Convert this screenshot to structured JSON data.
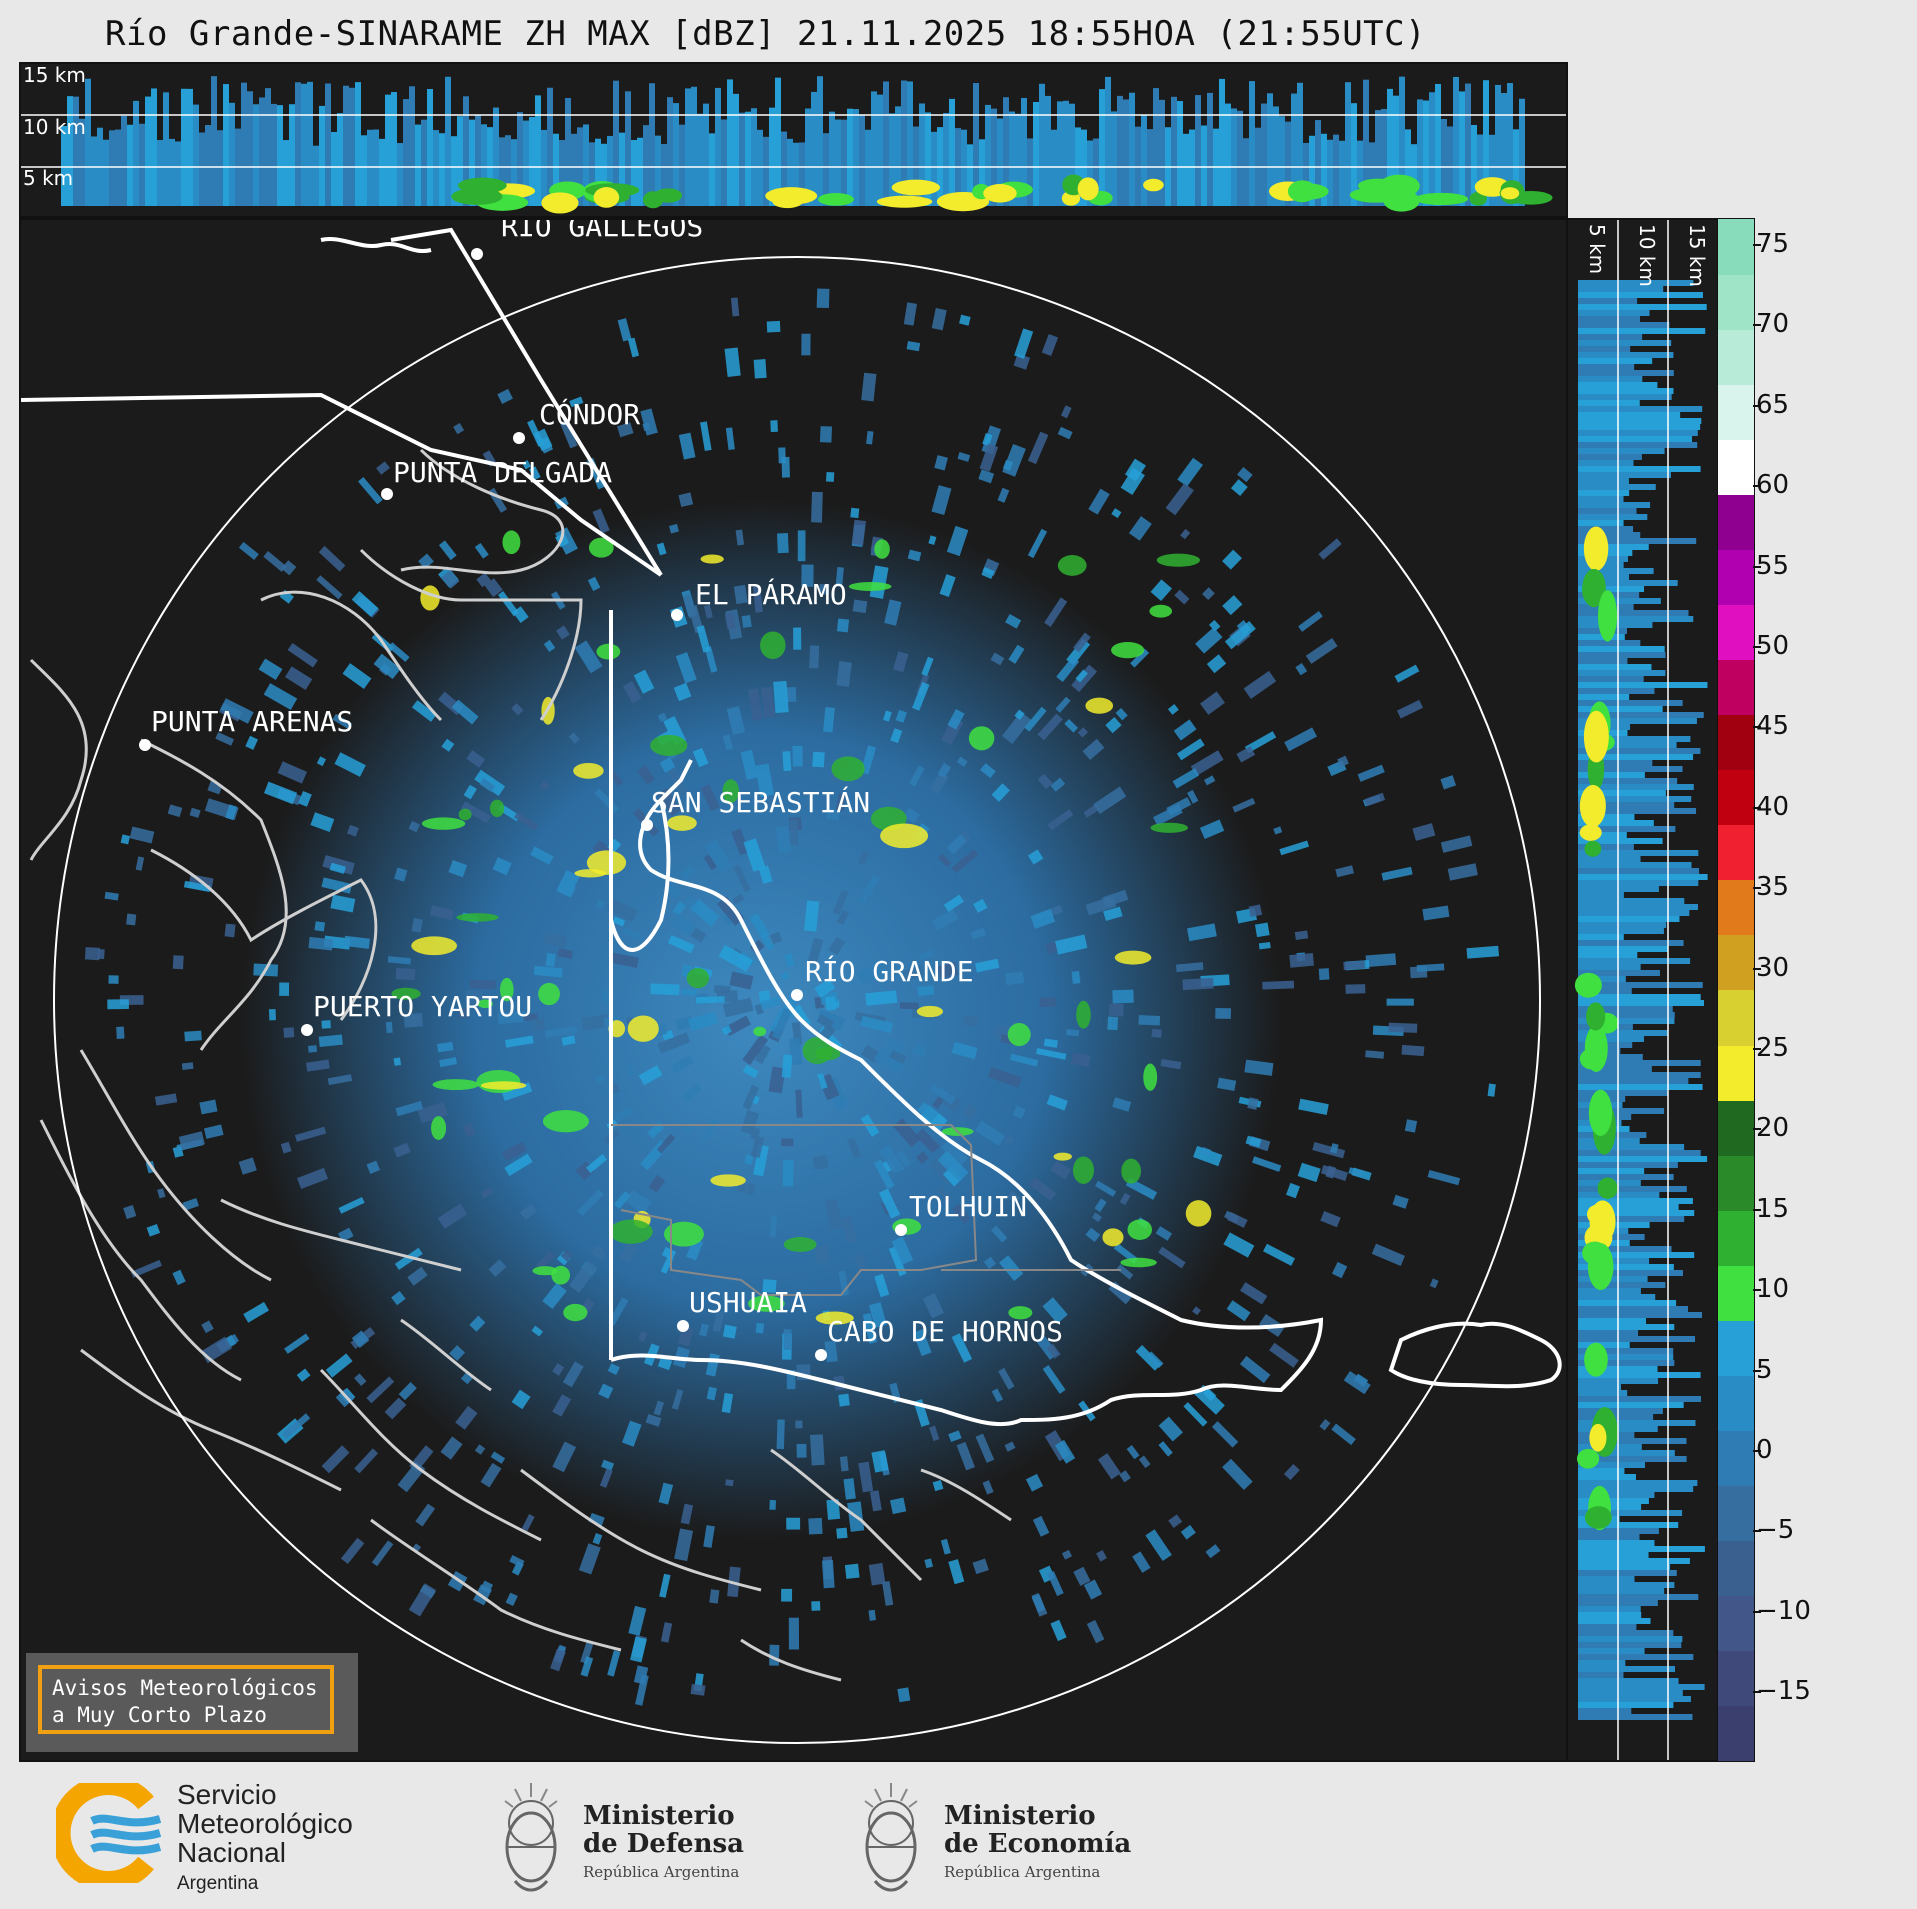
{
  "title": "Río Grande-SINARAME ZH MAX [dBZ] 21.11.2025 18:55HOA (21:55UTC)",
  "top_panel": {
    "height_labels": [
      "15 km",
      "10 km",
      "5 km"
    ]
  },
  "side_panel": {
    "height_labels": [
      "5 km",
      "10 km",
      "15 km"
    ]
  },
  "cities": [
    {
      "name": "RÍO GALLEGOS"
    },
    {
      "name": "CÓNDOR"
    },
    {
      "name": "PUNTA DELGADA"
    },
    {
      "name": "EL PÁRAMO"
    },
    {
      "name": "PUNTA ARENAS"
    },
    {
      "name": "SAN SEBASTIÁN"
    },
    {
      "name": "RÍO GRANDE"
    },
    {
      "name": "PUERTO YARTOU"
    },
    {
      "name": "TOLHUIN"
    },
    {
      "name": "USHUAIA"
    },
    {
      "name": "CABO DE HORNOS"
    }
  ],
  "colorbar": {
    "unit": "dBZ",
    "ticks": [
      "75",
      "70",
      "65",
      "60",
      "55",
      "50",
      "45",
      "40",
      "35",
      "30",
      "25",
      "20",
      "15",
      "10",
      "5",
      "0",
      "−5",
      "−10",
      "−15"
    ],
    "colors": [
      "#3b3f6e",
      "#3f4a7a",
      "#43568a",
      "#3a6090",
      "#366ea0",
      "#2f7cb4",
      "#2a8cc4",
      "#27a0d8",
      "#3fe040",
      "#2fb030",
      "#2a8a2a",
      "#1f6a20",
      "#f2ec2c",
      "#d8d030",
      "#d0a020",
      "#e07a1a",
      "#f02030",
      "#c00010",
      "#a00010",
      "#c00060",
      "#e010c0",
      "#b000b0",
      "#900090",
      "#ffffff",
      "#d8f4ec",
      "#b8ecd8",
      "#a0e4c8",
      "#88dcbc"
    ]
  },
  "warning": {
    "line1": "Avisos Meteorológicos",
    "line2": "a Muy Corto Plazo"
  },
  "logos": {
    "smn": {
      "line1": "Servicio",
      "line2": "Meteorológico",
      "line3": "Nacional",
      "sub": "Argentina"
    },
    "defensa": {
      "line1": "Ministerio",
      "line2": "de Defensa",
      "sub": "República Argentina"
    },
    "economia": {
      "line1": "Ministerio",
      "line2": "de Economía",
      "sub": "República Argentina"
    }
  }
}
